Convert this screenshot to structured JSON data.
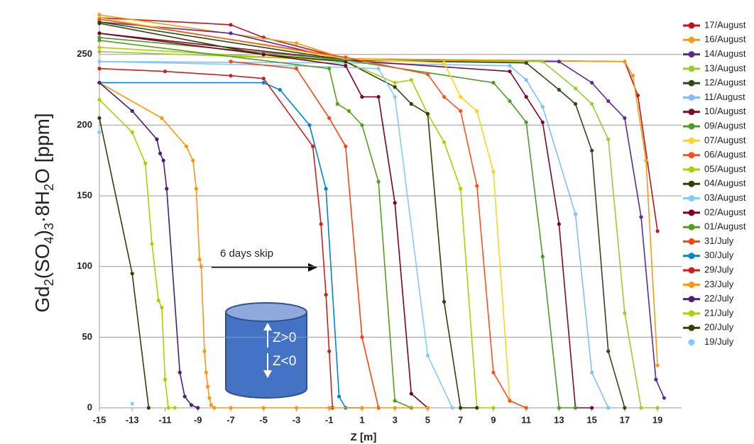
{
  "chart_data": {
    "type": "line",
    "ylabel_parts": [
      "Gd",
      "2",
      "(SO",
      "4",
      ")",
      "3",
      "·8H",
      "2",
      "O [ppm]"
    ],
    "xlabel": "Z [m]",
    "annotations": {
      "skip": "6 days skip",
      "up": "Z>0",
      "down": "Z<0"
    },
    "xlim": [
      -15,
      19.6
    ],
    "ylim": [
      0,
      280
    ],
    "xticks": [
      -15,
      -13,
      -11,
      -9,
      -7,
      -5,
      -3,
      -1,
      1,
      3,
      5,
      7,
      9,
      11,
      13,
      15,
      17,
      19
    ],
    "yticks": [
      0,
      50,
      100,
      150,
      200,
      250
    ],
    "grid": true,
    "legend": "right",
    "series": [
      {
        "name": "17/August",
        "color": "#c0141c",
        "x": [
          -15,
          -7,
          -5,
          0,
          17,
          17.8,
          19
        ],
        "values": [
          276,
          271,
          262,
          247,
          245,
          221,
          125
        ]
      },
      {
        "name": "16/August",
        "color": "#f39c12",
        "x": [
          -15,
          -3,
          0,
          17,
          17.5,
          18.3,
          19
        ],
        "values": [
          278,
          258,
          247,
          245,
          235,
          175,
          30
        ]
      },
      {
        "name": "14/August",
        "color": "#5b2c91",
        "x": [
          -15,
          -7,
          0,
          13,
          15,
          16,
          17,
          18,
          18.9,
          19.4
        ],
        "values": [
          273,
          265,
          246,
          245,
          230,
          217,
          205,
          135,
          20,
          7
        ]
      },
      {
        "name": "13/August",
        "color": "#99cc33",
        "x": [
          -15,
          0,
          12,
          14,
          15,
          16,
          17,
          18,
          19
        ],
        "values": [
          252,
          246,
          245,
          226,
          215,
          190,
          67,
          0,
          0
        ]
      },
      {
        "name": "12/August",
        "color": "#2d4a1a",
        "x": [
          -15,
          0,
          11,
          13,
          14,
          15,
          16,
          17
        ],
        "values": [
          273,
          246,
          244,
          225,
          215,
          182,
          40,
          0
        ]
      },
      {
        "name": "11/August",
        "color": "#7fbfff",
        "x": [
          -15,
          0,
          10,
          11,
          12,
          14,
          15,
          16
        ],
        "values": [
          245,
          244,
          242,
          232,
          213,
          137,
          25,
          0
        ]
      },
      {
        "name": "10/August",
        "color": "#7b0a2a",
        "x": [
          -15,
          0,
          10,
          11,
          12,
          13,
          14,
          15
        ],
        "values": [
          265,
          246,
          238,
          220,
          202,
          130,
          0,
          0
        ]
      },
      {
        "name": "09/August",
        "color": "#4d9a2a",
        "x": [
          -15,
          0,
          9,
          10,
          11,
          12,
          13,
          14
        ],
        "values": [
          262,
          246,
          230,
          217,
          202,
          107,
          0,
          0
        ]
      },
      {
        "name": "07/August",
        "color": "#ffd320",
        "x": [
          -15,
          0,
          6,
          7,
          8,
          9,
          10,
          11
        ],
        "values": [
          276,
          247,
          244,
          220,
          210,
          167,
          5,
          0
        ]
      },
      {
        "name": "06/August",
        "color": "#ff4f1f",
        "x": [
          -15,
          0,
          5,
          6,
          7,
          8,
          9,
          10,
          11
        ],
        "values": [
          275,
          248,
          236,
          220,
          210,
          157,
          25,
          5,
          0
        ]
      },
      {
        "name": "05/August",
        "color": "#aecf00",
        "x": [
          -15,
          0,
          3,
          4,
          5,
          6,
          7,
          8,
          9
        ],
        "values": [
          255,
          245,
          230,
          232,
          208,
          188,
          155,
          0,
          0
        ]
      },
      {
        "name": "04/August",
        "color": "#314004",
        "x": [
          -15,
          -5,
          0,
          3,
          4,
          5,
          6,
          7,
          8
        ],
        "values": [
          272,
          250,
          245,
          227,
          215,
          208,
          75,
          0,
          0
        ]
      },
      {
        "name": "03/August",
        "color": "#83caff",
        "x": [
          -15,
          -3,
          2,
          3,
          5,
          6.5
        ],
        "values": [
          245,
          242,
          240,
          220,
          37,
          0
        ]
      },
      {
        "name": "02/August",
        "color": "#7e0021",
        "x": [
          -15,
          -5,
          0,
          1,
          2,
          3,
          4,
          5
        ],
        "values": [
          265,
          250,
          242,
          220,
          220,
          145,
          10,
          0
        ]
      },
      {
        "name": "01/August",
        "color": "#579d1c",
        "x": [
          -15,
          -1,
          -0.5,
          0.2,
          1,
          2,
          3,
          4
        ],
        "values": [
          260,
          240,
          215,
          210,
          200,
          160,
          5,
          0
        ]
      },
      {
        "name": "31/July",
        "color": "#ff420e",
        "x": [
          -7,
          -3,
          -1,
          0,
          1,
          2
        ],
        "values": [
          245,
          240,
          205,
          185,
          50,
          0
        ]
      },
      {
        "name": "30/July",
        "color": "#0084d1",
        "x": [
          -15,
          -5,
          -4,
          -2.2,
          -1.2,
          -0.4,
          0,
          1
        ],
        "values": [
          230,
          230,
          225,
          200,
          155,
          8,
          0,
          0
        ]
      },
      {
        "name": "29/July",
        "color": "#c9211e",
        "x": [
          -15,
          -11,
          -7,
          -5,
          -2,
          -1.5,
          -1.2,
          -1,
          -0.8
        ],
        "values": [
          240,
          238,
          235,
          233,
          185,
          130,
          80,
          40,
          0
        ]
      },
      {
        "name": "23/July",
        "color": "#ff950e",
        "x": [
          -15,
          -11.2,
          -9.7,
          -9.3,
          -9.1,
          -8.9,
          -8.8,
          -8.6,
          -8.5,
          -8.4,
          -8.3,
          -8.2,
          -8,
          -7,
          -5,
          -3,
          -1,
          1,
          3,
          5
        ],
        "values": [
          230,
          205,
          185,
          175,
          155,
          105,
          100,
          40,
          25,
          15,
          7,
          2,
          0,
          0,
          0,
          0,
          0,
          0,
          0,
          0
        ]
      },
      {
        "name": "22/July",
        "color": "#4b1f6f",
        "x": [
          -15,
          -13,
          -11.5,
          -11.3,
          -11.1,
          -10.9,
          -10.1,
          -9.8,
          -9.4,
          -9
        ],
        "values": [
          230,
          210,
          190,
          180,
          175,
          155,
          25,
          8,
          2,
          0
        ]
      },
      {
        "name": "21/July",
        "color": "#aecf00",
        "x": [
          -15,
          -13,
          -12.2,
          -11.8,
          -11.4,
          -11.2,
          -11,
          -10.8,
          -10.4
        ],
        "values": [
          218,
          195,
          173,
          116,
          76,
          71,
          20,
          0,
          0
        ]
      },
      {
        "name": "20/July",
        "color": "#314004",
        "x": [
          -15,
          -13,
          -12
        ],
        "values": [
          205,
          95,
          0
        ]
      },
      {
        "name": "19/July",
        "color": "#83caff",
        "line": false,
        "x": [
          -15,
          -13
        ],
        "values": [
          195,
          3
        ]
      }
    ]
  }
}
